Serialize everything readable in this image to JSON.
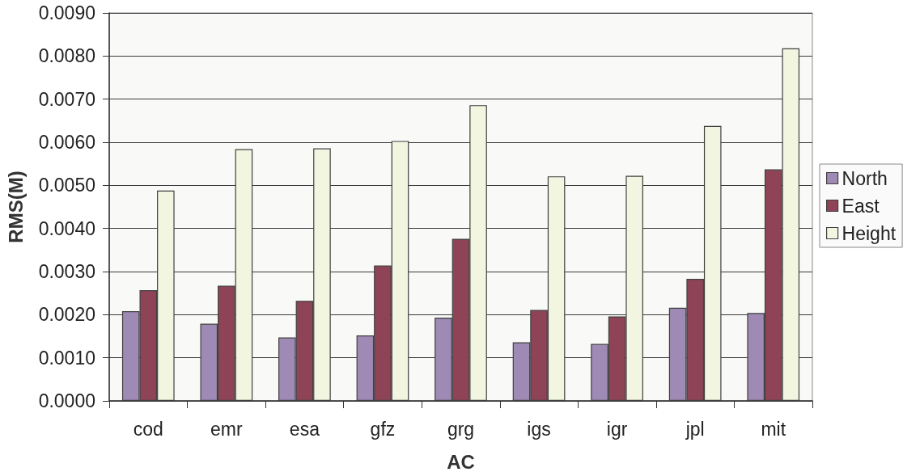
{
  "chart_data": {
    "type": "bar",
    "xlabel": "AC",
    "ylabel": "RMS(M)",
    "categories": [
      "cod",
      "emr",
      "esa",
      "gfz",
      "grg",
      "igs",
      "igr",
      "jpl",
      "mit"
    ],
    "series": [
      {
        "name": "North",
        "color": "#9e8ab4",
        "values": [
          0.00208,
          0.00179,
          0.00147,
          0.00152,
          0.00193,
          0.00136,
          0.00132,
          0.00216,
          0.00204
        ]
      },
      {
        "name": "East",
        "color": "#8e4456",
        "values": [
          0.00257,
          0.00267,
          0.00232,
          0.00314,
          0.00376,
          0.00211,
          0.00196,
          0.00283,
          0.00537
        ]
      },
      {
        "name": "Height",
        "color": "#f2f5e0",
        "values": [
          0.00488,
          0.00584,
          0.00586,
          0.00603,
          0.00686,
          0.00521,
          0.00522,
          0.00638,
          0.00818
        ]
      }
    ],
    "ylim": [
      0,
      0.009
    ],
    "yticks": [
      {
        "value": 0,
        "label": "0.0000"
      },
      {
        "value": 0.001,
        "label": "0.0010"
      },
      {
        "value": 0.002,
        "label": "0.0020"
      },
      {
        "value": 0.003,
        "label": "0.0030"
      },
      {
        "value": 0.004,
        "label": "0.0040"
      },
      {
        "value": 0.005,
        "label": "0.0050"
      },
      {
        "value": 0.006,
        "label": "0.0060"
      },
      {
        "value": 0.007,
        "label": "0.0070"
      },
      {
        "value": 0.008,
        "label": "0.0080"
      },
      {
        "value": 0.009,
        "label": "0.0090"
      }
    ],
    "grid": "y",
    "legend": "right"
  }
}
